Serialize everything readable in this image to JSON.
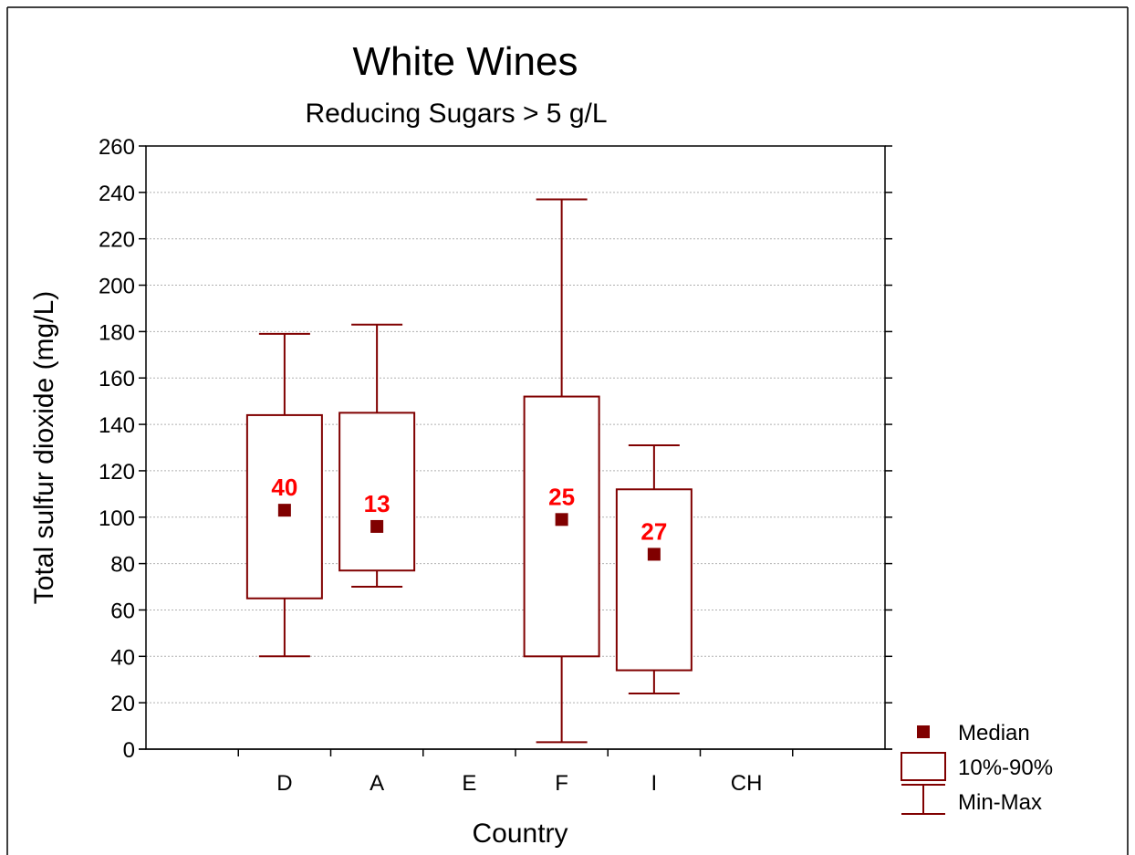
{
  "title": "White Wines",
  "subtitle": "Reducing Sugars > 5 g/L",
  "colors": {
    "box": "#800000",
    "median": "#800000",
    "count_label": "#ff0000",
    "grid": "#b0b0b0",
    "axis": "#000000",
    "frame": "#000000"
  },
  "chart_data": {
    "type": "box",
    "xlabel": "Country",
    "ylabel": "Total sulfur dioxide (mg/L)",
    "ylim": [
      0,
      260
    ],
    "yticks": [
      0,
      20,
      40,
      60,
      80,
      100,
      120,
      140,
      160,
      180,
      200,
      220,
      240,
      260
    ],
    "categories": [
      "D",
      "A",
      "E",
      "F",
      "I",
      "CH"
    ],
    "grid": "horizontal",
    "legend_position": "bottom-right",
    "legend": [
      {
        "symbol": "median-square",
        "label": "Median"
      },
      {
        "symbol": "box",
        "label": "10%-90%"
      },
      {
        "symbol": "whisker",
        "label": "Min-Max"
      }
    ],
    "boxes": [
      {
        "category": "D",
        "min": 40,
        "p10": 65,
        "median": 103,
        "p90": 144,
        "max": 179,
        "n": "40"
      },
      {
        "category": "A",
        "min": 70,
        "p10": 77,
        "median": 96,
        "p90": 145,
        "max": 183,
        "n": "13"
      },
      {
        "category": "F",
        "min": 3,
        "p10": 40,
        "median": 99,
        "p90": 152,
        "max": 237,
        "n": "25"
      },
      {
        "category": "I",
        "min": 24,
        "p10": 34,
        "median": 84,
        "p90": 112,
        "max": 131,
        "n": "27"
      }
    ]
  }
}
